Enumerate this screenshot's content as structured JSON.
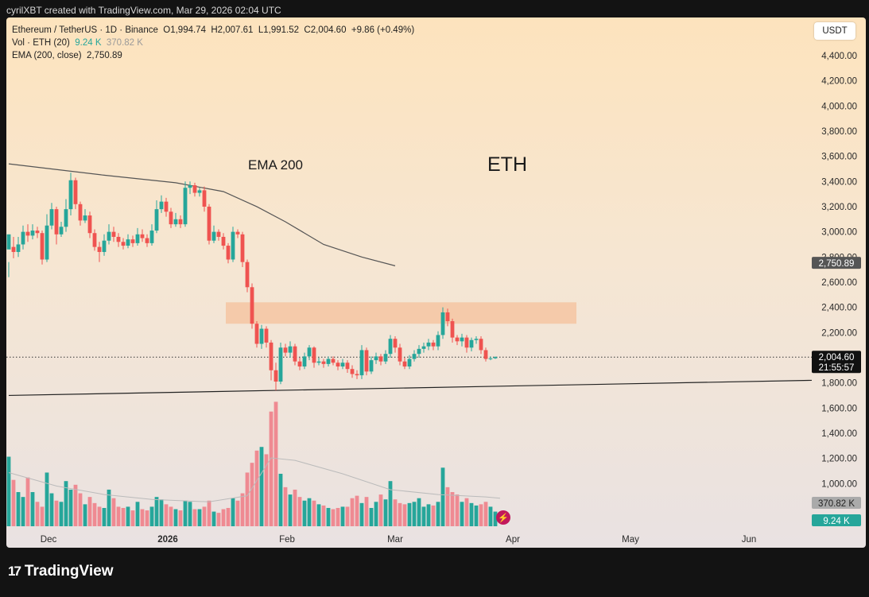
{
  "header": {
    "text": "cyrilXBT created with TradingView.com, Mar 29, 2026 02:04 UTC"
  },
  "legend": {
    "symbol": "Ethereum / TetherUS · 1D · Binance",
    "open": "O1,994.74",
    "high": "H2,007.61",
    "low": "L1,991.52",
    "close": "C2,004.60",
    "change": "+9.86 (+0.49%)",
    "vol_label": "Vol · ETH (20)",
    "vol_value": "9.24 K",
    "vol_ma": "370.82 K",
    "ema_label": "EMA (200, close)",
    "ema_value": "2,750.89"
  },
  "unit_button": "USDT",
  "annotations": {
    "ema_text": "EMA 200",
    "eth_text": "ETH"
  },
  "badges": {
    "ema": "2,750.89",
    "price": "2,004.60",
    "countdown": "21:55:57",
    "vol_ma": "370.82 K",
    "vol": "9.24 K"
  },
  "footer": {
    "logo_text": "TradingView"
  },
  "colors": {
    "up": "#26a69a",
    "down": "#ef5350",
    "vol_up": "#26a69a",
    "vol_down": "#ef8a92",
    "ema_line": "#555555",
    "zone": "#f5c6a5"
  },
  "chart_data": {
    "type": "candlestick",
    "y_ticks": [
      "4,400.00",
      "4,200.00",
      "4,000.00",
      "3,800.00",
      "3,600.00",
      "3,400.00",
      "3,200.00",
      "3,000.00",
      "2,800.00",
      "2,600.00",
      "2,400.00",
      "2,200.00",
      "2,000.00",
      "1,800.00",
      "1,600.00",
      "1,400.00",
      "1,200.00",
      "1,000.00"
    ],
    "x_ticks": [
      "Dec",
      "2026",
      "Feb",
      "Mar",
      "Apr",
      "May",
      "Jun"
    ],
    "ylim": [
      800,
      4550
    ],
    "resistance_zone": [
      2270,
      2440
    ],
    "ema200": [
      [
        0,
        3540
      ],
      [
        20,
        3450
      ],
      [
        35,
        3390
      ],
      [
        45,
        3320
      ],
      [
        52,
        3200
      ],
      [
        58,
        3080
      ],
      [
        66,
        2900
      ],
      [
        74,
        2800
      ],
      [
        81,
        2730
      ]
    ],
    "support_line": [
      [
        0,
        1700
      ],
      [
        130,
        1820
      ]
    ],
    "price_line": 2004.6,
    "candles": [
      [
        2860,
        2980,
        2760,
        2640
      ],
      [
        2880,
        2840,
        2960,
        2790
      ],
      [
        2840,
        2900,
        2960,
        2800
      ],
      [
        2900,
        3000,
        3050,
        2860
      ],
      [
        3000,
        2970,
        3060,
        2920
      ],
      [
        2970,
        3010,
        3060,
        2940
      ],
      [
        3010,
        2990,
        3040,
        2950
      ],
      [
        2990,
        2780,
        3010,
        2740
      ],
      [
        2780,
        3050,
        3140,
        2760
      ],
      [
        3050,
        3180,
        3230,
        3020
      ],
      [
        3180,
        2980,
        3200,
        2900
      ],
      [
        2980,
        3040,
        3080,
        2960
      ],
      [
        3040,
        3180,
        3260,
        3000
      ],
      [
        3180,
        3410,
        3470,
        3130
      ],
      [
        3410,
        3220,
        3430,
        3180
      ],
      [
        3220,
        3090,
        3240,
        3050
      ],
      [
        3090,
        3130,
        3180,
        3070
      ],
      [
        3130,
        2990,
        3160,
        2950
      ],
      [
        2990,
        2880,
        3020,
        2850
      ],
      [
        2880,
        2840,
        2920,
        2760
      ],
      [
        2840,
        2930,
        2980,
        2810
      ],
      [
        2930,
        3000,
        3060,
        2900
      ],
      [
        3000,
        2960,
        3040,
        2920
      ],
      [
        2960,
        2920,
        2990,
        2880
      ],
      [
        2920,
        2890,
        2950,
        2860
      ],
      [
        2890,
        2940,
        2980,
        2870
      ],
      [
        2940,
        2910,
        2970,
        2880
      ],
      [
        2910,
        2980,
        3030,
        2890
      ],
      [
        2980,
        2950,
        3020,
        2920
      ],
      [
        2950,
        2910,
        2980,
        2880
      ],
      [
        2910,
        3010,
        3060,
        2890
      ],
      [
        3010,
        3180,
        3250,
        2990
      ],
      [
        3180,
        3240,
        3290,
        3150
      ],
      [
        3240,
        3160,
        3270,
        3120
      ],
      [
        3160,
        3060,
        3190,
        3030
      ],
      [
        3060,
        3100,
        3150,
        3040
      ],
      [
        3100,
        3060,
        3130,
        3030
      ],
      [
        3060,
        3350,
        3400,
        3040
      ],
      [
        3350,
        3370,
        3400,
        3300
      ],
      [
        3370,
        3310,
        3390,
        3280
      ],
      [
        3310,
        3330,
        3350,
        3280
      ],
      [
        3330,
        3200,
        3360,
        3160
      ],
      [
        3200,
        2930,
        3220,
        2900
      ],
      [
        2930,
        3000,
        3050,
        2910
      ],
      [
        3000,
        2960,
        3020,
        2930
      ],
      [
        2960,
        2890,
        2990,
        2860
      ],
      [
        2890,
        2780,
        2910,
        2750
      ],
      [
        2780,
        3000,
        3040,
        2760
      ],
      [
        3000,
        2980,
        3020,
        2950
      ],
      [
        2980,
        2760,
        3000,
        2720
      ],
      [
        2760,
        2560,
        2780,
        2520
      ],
      [
        2560,
        2270,
        2590,
        2230
      ],
      [
        2270,
        2110,
        2290,
        2080
      ],
      [
        2110,
        2230,
        2260,
        2070
      ],
      [
        2230,
        2120,
        2250,
        2080
      ],
      [
        2120,
        1900,
        2140,
        1820
      ],
      [
        1900,
        1810,
        1960,
        1740
      ],
      [
        1810,
        2080,
        2120,
        1790
      ],
      [
        2080,
        2040,
        2110,
        2010
      ],
      [
        2040,
        2090,
        2130,
        2000
      ],
      [
        2090,
        1970,
        2110,
        1940
      ],
      [
        1970,
        1930,
        2000,
        1900
      ],
      [
        1930,
        2010,
        2040,
        1910
      ],
      [
        2010,
        2080,
        2100,
        1980
      ],
      [
        2080,
        1960,
        2090,
        1920
      ],
      [
        1960,
        1970,
        2000,
        1940
      ],
      [
        1970,
        1950,
        1990,
        1920
      ],
      [
        1950,
        1990,
        2010,
        1930
      ],
      [
        1990,
        1960,
        2010,
        1940
      ],
      [
        1960,
        1930,
        1980,
        1900
      ],
      [
        1930,
        1960,
        1990,
        1910
      ],
      [
        1960,
        1910,
        1980,
        1880
      ],
      [
        1910,
        1870,
        1940,
        1840
      ],
      [
        1870,
        1860,
        1900,
        1830
      ],
      [
        1860,
        2060,
        2100,
        1830
      ],
      [
        2060,
        1890,
        2080,
        1860
      ],
      [
        1890,
        1980,
        2010,
        1870
      ],
      [
        1980,
        2010,
        2040,
        1950
      ],
      [
        2010,
        1970,
        2030,
        1940
      ],
      [
        1970,
        2030,
        2060,
        1950
      ],
      [
        2030,
        2150,
        2180,
        2000
      ],
      [
        2150,
        2080,
        2170,
        2040
      ],
      [
        2080,
        1970,
        2110,
        1940
      ],
      [
        1970,
        1930,
        2000,
        1910
      ],
      [
        1930,
        1990,
        2020,
        1910
      ],
      [
        1990,
        2030,
        2060,
        1970
      ],
      [
        2030,
        2070,
        2100,
        2000
      ],
      [
        2070,
        2090,
        2120,
        2040
      ],
      [
        2090,
        2120,
        2150,
        2060
      ],
      [
        2120,
        2090,
        2140,
        2060
      ],
      [
        2090,
        2180,
        2210,
        2060
      ],
      [
        2180,
        2360,
        2400,
        2150
      ],
      [
        2360,
        2290,
        2390,
        2250
      ],
      [
        2290,
        2160,
        2310,
        2120
      ],
      [
        2160,
        2130,
        2180,
        2100
      ],
      [
        2130,
        2160,
        2190,
        2090
      ],
      [
        2160,
        2080,
        2180,
        2040
      ],
      [
        2080,
        2140,
        2160,
        2050
      ],
      [
        2140,
        2150,
        2170,
        2110
      ],
      [
        2150,
        2060,
        2170,
        2030
      ],
      [
        2060,
        1990,
        2080,
        1970
      ],
      [
        1990,
        1995,
        2010,
        1980
      ],
      [
        1995,
        2005,
        2010,
        1990
      ]
    ],
    "volumes": [
      570,
      380,
      280,
      240,
      400,
      280,
      200,
      160,
      440,
      270,
      210,
      200,
      370,
      300,
      340,
      270,
      180,
      240,
      190,
      160,
      150,
      300,
      230,
      160,
      150,
      160,
      130,
      200,
      140,
      130,
      160,
      240,
      220,
      180,
      160,
      140,
      130,
      210,
      200,
      140,
      140,
      160,
      210,
      120,
      110,
      140,
      150,
      230,
      210,
      270,
      440,
      520,
      620,
      650,
      590,
      940,
      1020,
      430,
      320,
      260,
      300,
      240,
      210,
      230,
      210,
      180,
      170,
      150,
      140,
      150,
      160,
      160,
      230,
      250,
      190,
      240,
      150,
      200,
      260,
      220,
      370,
      220,
      190,
      180,
      190,
      200,
      230,
      160,
      180,
      170,
      200,
      480,
      320,
      280,
      260,
      200,
      230,
      190,
      170,
      180,
      200,
      160,
      120
    ],
    "vol_ylim": [
      0,
      1050
    ],
    "vol_ma": [
      [
        0,
        440
      ],
      [
        10,
        330
      ],
      [
        20,
        260
      ],
      [
        30,
        220
      ],
      [
        42,
        200
      ],
      [
        50,
        250
      ],
      [
        55,
        560
      ],
      [
        60,
        540
      ],
      [
        70,
        430
      ],
      [
        80,
        300
      ],
      [
        90,
        260
      ],
      [
        100,
        240
      ],
      [
        103,
        230
      ]
    ]
  }
}
